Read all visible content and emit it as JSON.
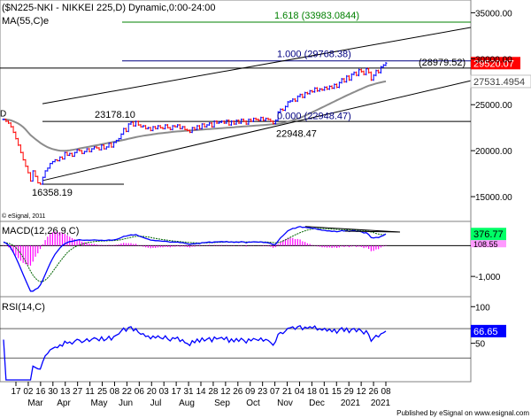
{
  "chart_data": {
    "type": "candlestick",
    "title": "($N225-NKI - NIKKEI 225,D) Dynamic,0:00-24:00",
    "copyright": "© eSignal, 2011",
    "footer": "Published by eSignal on www.esignal.com",
    "colors": {
      "up": "#0000ff",
      "down": "#ff0000",
      "ma": "#8c8c8c",
      "channel": "#000000",
      "fib_1": "#000080",
      "fib_1618": "#008000",
      "macd": "#0000ff",
      "signal": "#006400",
      "histogram": "#ff00ff",
      "rsi": "#0000ff",
      "last_price_bg": "#ff0000",
      "ma_label_bg": "#ffffff"
    },
    "x_labels": [
      "17",
      "02",
      "16",
      "30",
      "13",
      "27",
      "11",
      "25",
      "08",
      "22",
      "06",
      "20",
      "03",
      "17",
      "31",
      "14",
      "28",
      "12",
      "26",
      "09",
      "23",
      "07",
      "21",
      "04",
      "18",
      "01",
      "15",
      "29",
      "12",
      "26",
      "08"
    ],
    "months": [
      "Mar",
      "Apr",
      "May",
      "Jun",
      "Jul",
      "Aug",
      "Sep",
      "Oct",
      "Nov",
      "Dec",
      "2021",
      "Jan",
      "2021"
    ],
    "price_panel": {
      "legend": [
        "MA(55,C)e"
      ],
      "y_ticks": [
        "35000.00",
        "30000.00",
        "25000.00",
        "20000.00",
        "15000.00"
      ],
      "y_tick_values": [
        35000,
        30000,
        25000,
        20000,
        15000
      ],
      "ylim": [
        12500,
        36000
      ],
      "last_price": "29520.07",
      "ma_value": "27531.4954",
      "annotations": {
        "fib_1618": "1.618 (33983.0844)",
        "fib_1000": "1.000 (29768.38)",
        "resistance": "(28979.52)",
        "high_jun": "23178.10",
        "low_mar": "16358.19",
        "fib_0": "0.000 (22948.47)",
        "low_oct": "22948.47",
        "d_label": "D"
      },
      "levels": {
        "fib_1618": 33983.0844,
        "fib_1000": 29768.38,
        "resistance": 28979.52,
        "high_jun": 23178.1,
        "low_mar": 16358.19,
        "fib_0": 22948.47
      }
    },
    "macd_panel": {
      "legend": "MACD(12,26,9,C)",
      "y_ticks": [
        "-1,000"
      ],
      "values_label": [
        "376.77",
        "108.55"
      ]
    },
    "rsi_panel": {
      "legend": "RSI(14,C)",
      "y_ticks": [
        "100",
        "50"
      ],
      "value_label": "66.65"
    },
    "close": [
      23400,
      23200,
      23000,
      22600,
      22000,
      21300,
      20600,
      19800,
      19000,
      18300,
      17600,
      16700,
      17800,
      17200,
      16500,
      16358,
      17100,
      17800,
      18100,
      18600,
      18800,
      19000,
      18900,
      19300,
      19100,
      19800,
      19500,
      19700,
      19400,
      19800,
      20100,
      20000,
      19700,
      19900,
      20200,
      19900,
      20200,
      20400,
      20300,
      20100,
      20600,
      20200,
      20400,
      20800,
      20400,
      20900,
      21100,
      21300,
      21800,
      22400,
      22100,
      22900,
      23100,
      22700,
      23178,
      22800,
      22600,
      22700,
      22400,
      22500,
      22200,
      22600,
      22400,
      22700,
      22500,
      22400,
      22800,
      22500,
      22300,
      22700,
      22600,
      22800,
      22400,
      22600,
      22300,
      22200,
      22000,
      22500,
      22300,
      22700,
      22400,
      22900,
      22600,
      22800,
      23000,
      22600,
      23200,
      23000,
      23100,
      23200,
      23000,
      23300,
      22800,
      23200,
      22900,
      23300,
      23000,
      23400,
      23200,
      22900,
      23400,
      23200,
      23500,
      23400,
      23300,
      23600,
      23300,
      23500,
      23400,
      23200,
      22948,
      23300,
      24200,
      24500,
      24400,
      24800,
      25300,
      25400,
      25600,
      25400,
      25900,
      26100,
      25800,
      26300,
      26200,
      26500,
      26400,
      26800,
      26500,
      26700,
      26600,
      26900,
      26700,
      27000,
      26800,
      27200,
      26900,
      27400,
      27800,
      27500,
      28100,
      27700,
      28300,
      28500,
      28200,
      28800,
      28600,
      28300,
      28900,
      28500,
      27700,
      28200,
      28700,
      28500,
      29100,
      29300,
      29520
    ],
    "ma": [
      23400,
      23380,
      23350,
      23300,
      23200,
      23080,
      22950,
      22780,
      22560,
      22300,
      22000,
      21700,
      21480,
      21250,
      21050,
      20850,
      20680,
      20520,
      20380,
      20270,
      20180,
      20110,
      20050,
      20000,
      19980,
      19990,
      20010,
      20040,
      20080,
      20130,
      20180,
      20240,
      20290,
      20340,
      20390,
      20440,
      20490,
      20540,
      20590,
      20640,
      20700,
      20750,
      20800,
      20860,
      20910,
      20960,
      21010,
      21060,
      21110,
      21170,
      21230,
      21290,
      21350,
      21410,
      21470,
      21520,
      21570,
      21620,
      21660,
      21700,
      21740,
      21780,
      21820,
      21860,
      21890,
      21920,
      21950,
      21980,
      22010,
      22040,
      22070,
      22090,
      22110,
      22130,
      22150,
      22170,
      22190,
      22210,
      22230,
      22250,
      22270,
      22290,
      22310,
      22330,
      22350,
      22370,
      22390,
      22410,
      22430,
      22450,
      22470,
      22490,
      22510,
      22530,
      22550,
      22570,
      22590,
      22610,
      22630,
      22650,
      22670,
      22690,
      22710,
      22730,
      22750,
      22770,
      22790,
      22810,
      22830,
      22850,
      22870,
      22890,
      22920,
      22960,
      23010,
      23070,
      23140,
      23210,
      23290,
      23380,
      23470,
      23570,
      23680,
      23800,
      23920,
      24050,
      24180,
      24310,
      24440,
      24570,
      24700,
      24830,
      24960,
      25090,
      25220,
      25350,
      25480,
      25610,
      25740,
      25870,
      26000,
      26120,
      26240,
      26360,
      26480,
      26600,
      26720,
      26840,
      26960,
      27060,
      27140,
      27220,
      27300,
      27370,
      27430,
      27490,
      27531
    ],
    "macd": [
      120,
      80,
      20,
      -80,
      -220,
      -380,
      -560,
      -750,
      -940,
      -1120,
      -1300,
      -1480,
      -1480,
      -1420,
      -1380,
      -1280,
      -1120,
      -940,
      -760,
      -580,
      -420,
      -280,
      -180,
      -80,
      0,
      60,
      100,
      130,
      140,
      160,
      180,
      190,
      180,
      175,
      180,
      175,
      180,
      185,
      180,
      170,
      175,
      165,
      170,
      185,
      175,
      185,
      200,
      225,
      260,
      300,
      310,
      330,
      350,
      340,
      360,
      320,
      290,
      265,
      235,
      210,
      180,
      175,
      160,
      160,
      150,
      140,
      145,
      130,
      110,
      120,
      110,
      115,
      95,
      95,
      80,
      60,
      40,
      60,
      55,
      75,
      65,
      95,
      95,
      105,
      120,
      100,
      120,
      120,
      125,
      130,
      120,
      135,
      110,
      125,
      105,
      120,
      105,
      130,
      120,
      90,
      115,
      110,
      125,
      120,
      110,
      125,
      100,
      105,
      90,
      70,
      30,
      40,
      150,
      250,
      320,
      400,
      480,
      520,
      560,
      560,
      600,
      620,
      590,
      600,
      580,
      580,
      560,
      560,
      530,
      520,
      500,
      495,
      480,
      480,
      460,
      470,
      450,
      460,
      490,
      470,
      490,
      460,
      480,
      490,
      460,
      470,
      450,
      410,
      420,
      360,
      260,
      250,
      270,
      260,
      300,
      330,
      377
    ],
    "signal": [
      100,
      90,
      75,
      50,
      0,
      -60,
      -150,
      -260,
      -380,
      -520,
      -670,
      -830,
      -960,
      -1060,
      -1130,
      -1170,
      -1160,
      -1120,
      -1050,
      -960,
      -850,
      -740,
      -630,
      -520,
      -420,
      -320,
      -230,
      -160,
      -100,
      -50,
      -10,
      20,
      50,
      70,
      90,
      110,
      120,
      130,
      140,
      145,
      150,
      150,
      155,
      160,
      160,
      165,
      170,
      180,
      190,
      210,
      230,
      250,
      270,
      285,
      300,
      305,
      305,
      300,
      290,
      280,
      265,
      250,
      235,
      220,
      205,
      195,
      185,
      175,
      165,
      155,
      145,
      138,
      130,
      123,
      115,
      108,
      100,
      95,
      90,
      88,
      86,
      87,
      88,
      91,
      95,
      97,
      100,
      104,
      108,
      112,
      115,
      119,
      118,
      120,
      118,
      119,
      117,
      120,
      121,
      118,
      118,
      117,
      119,
      119,
      118,
      120,
      118,
      116,
      113,
      108,
      100,
      90,
      100,
      120,
      150,
      185,
      225,
      270,
      310,
      350,
      385,
      420,
      450,
      480,
      505,
      525,
      540,
      550,
      555,
      555,
      555,
      550,
      545,
      540,
      535,
      530,
      525,
      520,
      520,
      515,
      515,
      510,
      510,
      505,
      505,
      500,
      495,
      490,
      480,
      465,
      440,
      420,
      395,
      375,
      360,
      355,
      362
    ]
  }
}
